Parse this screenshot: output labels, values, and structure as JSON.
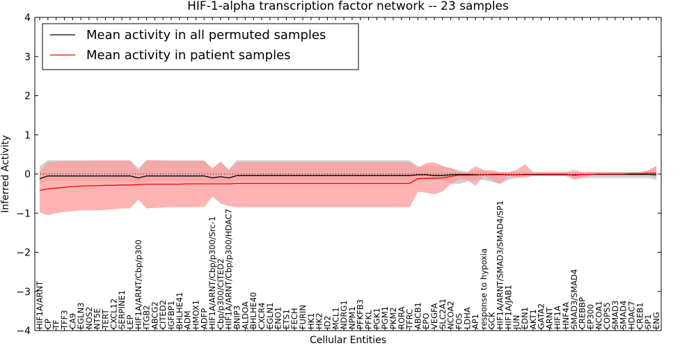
{
  "chart_data": {
    "type": "line",
    "title": "HIF-1-alpha transcription factor network -- 23 samples",
    "xlabel": "Cellular Entities",
    "ylabel": "Inferred Activity",
    "ylim": [
      -4,
      4
    ],
    "yticks": [
      "−4",
      "−3",
      "−2",
      "−1",
      "0",
      "1",
      "2",
      "3",
      "4"
    ],
    "legend_position": "top-left",
    "categories": [
      "HIF1A/ARNT",
      "CP",
      "TF",
      "TFF3",
      "CA9",
      "EGLN3",
      "NOS2",
      "NT5E",
      "TERT",
      "CXCL12",
      "SERPINE1",
      "LEP",
      "HIF1A/ARNT/Cbp/p300",
      "ITGB2",
      "ABCG2",
      "CITED2",
      "IGFBP1",
      "BHLHE41",
      "ADM",
      "HMOX1",
      "ADFP",
      "HIF1A/ARNT/Cbp/p300/Src-1",
      "Cbp/p300/CITED2",
      "HIF1A/ARNT/Cbp/p300/HDAC7",
      "BNIP3",
      "ALDOA",
      "BHLHE40",
      "CXCR4",
      "EGLN1",
      "ENO1",
      "ETS1",
      "FECH",
      "FURIN",
      "HK1",
      "HK2",
      "ID2",
      "MCL1",
      "NDRG1",
      "NPM1",
      "PFKFB3",
      "PFKL",
      "PGK1",
      "PGM1",
      "PKM2",
      "RORA",
      "TFRC",
      "ABCB1",
      "EPO",
      "VEGFA",
      "SLC2A1",
      "NCOA2",
      "FOS",
      "LDHA",
      "AP1",
      "response to hypoxia",
      "GCK",
      "HIF1A/ARNT/SMAD3/SMAD4/SP1",
      "HIF1A/JAB1",
      "JUN",
      "EDN1",
      "AKT1",
      "GATA2",
      "ARNT",
      "HIF1A",
      "HNF4A",
      "SMAD3/SMAD4",
      "CREBBP",
      "EP300",
      "NCOA1",
      "COPS5",
      "SMAD3",
      "SMAD4",
      "HDAC7",
      "CREB1",
      "SP1",
      "ENG"
    ],
    "series": [
      {
        "name": "Mean activity in all permuted samples",
        "color": "#000000",
        "band_color": "#bdbdbd",
        "values": [
          -0.12,
          -0.05,
          -0.05,
          -0.05,
          -0.05,
          -0.05,
          -0.05,
          -0.05,
          -0.05,
          -0.05,
          -0.05,
          -0.05,
          -0.1,
          -0.05,
          -0.05,
          -0.05,
          -0.05,
          -0.05,
          -0.05,
          -0.05,
          -0.05,
          -0.1,
          -0.07,
          -0.1,
          -0.04,
          -0.04,
          -0.04,
          -0.04,
          -0.04,
          -0.04,
          -0.04,
          -0.04,
          -0.04,
          -0.04,
          -0.04,
          -0.04,
          -0.04,
          -0.04,
          -0.04,
          -0.04,
          -0.04,
          -0.04,
          -0.04,
          -0.04,
          -0.04,
          -0.04,
          -0.02,
          -0.02,
          -0.04,
          -0.04,
          -0.02,
          -0.01,
          -0.01,
          -0.02,
          -0.02,
          -0.01,
          -0.01,
          -0.02,
          -0.02,
          -0.01,
          -0.01,
          -0.01,
          -0.01,
          -0.01,
          -0.01,
          -0.03,
          -0.01,
          -0.01,
          -0.01,
          -0.01,
          -0.01,
          -0.01,
          -0.01,
          -0.01,
          -0.01,
          -0.02
        ],
        "lower": [
          -0.25,
          -0.18,
          -0.18,
          -0.18,
          -0.18,
          -0.18,
          -0.18,
          -0.18,
          -0.18,
          -0.18,
          -0.18,
          -0.18,
          -0.23,
          -0.18,
          -0.18,
          -0.18,
          -0.18,
          -0.18,
          -0.18,
          -0.18,
          -0.18,
          -0.22,
          -0.2,
          -0.22,
          -0.17,
          -0.17,
          -0.17,
          -0.17,
          -0.17,
          -0.17,
          -0.17,
          -0.17,
          -0.17,
          -0.17,
          -0.17,
          -0.17,
          -0.17,
          -0.17,
          -0.17,
          -0.17,
          -0.17,
          -0.17,
          -0.17,
          -0.17,
          -0.17,
          -0.17,
          -0.15,
          -0.15,
          -0.15,
          -0.15,
          -0.25,
          -0.25,
          -0.2,
          -0.15,
          -0.15,
          -0.2,
          -0.25,
          -0.15,
          -0.1,
          -0.05,
          -0.05,
          -0.05,
          -0.05,
          -0.05,
          -0.05,
          -0.1,
          -0.1,
          -0.1,
          -0.1,
          -0.1,
          -0.1,
          -0.1,
          -0.1,
          -0.1,
          -0.1,
          -0.15
        ],
        "upper": [
          0.2,
          0.35,
          0.35,
          0.35,
          0.35,
          0.35,
          0.35,
          0.35,
          0.35,
          0.35,
          0.35,
          0.35,
          0.15,
          0.35,
          0.35,
          0.35,
          0.35,
          0.35,
          0.35,
          0.35,
          0.35,
          0.12,
          0.3,
          0.12,
          0.35,
          0.35,
          0.35,
          0.35,
          0.35,
          0.35,
          0.35,
          0.35,
          0.35,
          0.35,
          0.35,
          0.35,
          0.35,
          0.35,
          0.35,
          0.35,
          0.35,
          0.35,
          0.35,
          0.35,
          0.35,
          0.35,
          0.2,
          0.2,
          0.2,
          0.2,
          0.15,
          0.1,
          0.05,
          0.1,
          0.1,
          0.05,
          0.05,
          0.05,
          0.05,
          0.05,
          0.05,
          0.05,
          0.05,
          0.05,
          0.05,
          0.05,
          0.05,
          0.05,
          0.05,
          0.05,
          0.05,
          0.05,
          0.05,
          0.05,
          0.1,
          0.2
        ]
      },
      {
        "name": "Mean activity in patient samples",
        "color": "#ff0000",
        "band_color": "#ff9999",
        "values": [
          -0.42,
          -0.38,
          -0.36,
          -0.34,
          -0.32,
          -0.31,
          -0.3,
          -0.3,
          -0.29,
          -0.29,
          -0.28,
          -0.28,
          -0.27,
          -0.26,
          -0.26,
          -0.26,
          -0.26,
          -0.26,
          -0.25,
          -0.25,
          -0.25,
          -0.25,
          -0.25,
          -0.25,
          -0.24,
          -0.24,
          -0.24,
          -0.24,
          -0.24,
          -0.24,
          -0.24,
          -0.24,
          -0.24,
          -0.24,
          -0.24,
          -0.24,
          -0.24,
          -0.24,
          -0.24,
          -0.24,
          -0.24,
          -0.24,
          -0.24,
          -0.24,
          -0.24,
          -0.24,
          -0.12,
          -0.11,
          -0.11,
          -0.1,
          -0.06,
          -0.03,
          -0.03,
          -0.03,
          -0.02,
          -0.02,
          -0.02,
          -0.02,
          -0.02,
          -0.02,
          -0.02,
          -0.02,
          -0.02,
          -0.02,
          -0.02,
          -0.02,
          -0.01,
          -0.01,
          0.0,
          0.0,
          0.0,
          0.0,
          0.01,
          0.01,
          0.02,
          0.02
        ],
        "lower": [
          -0.98,
          -1.05,
          -1.0,
          -0.97,
          -0.95,
          -0.93,
          -0.93,
          -0.93,
          -0.92,
          -0.9,
          -0.88,
          -0.88,
          -0.65,
          -0.88,
          -0.87,
          -0.86,
          -0.85,
          -0.85,
          -0.85,
          -0.85,
          -0.84,
          -0.58,
          -0.75,
          -0.82,
          -0.85,
          -0.85,
          -0.85,
          -0.85,
          -0.85,
          -0.85,
          -0.85,
          -0.85,
          -0.85,
          -0.85,
          -0.85,
          -0.85,
          -0.85,
          -0.85,
          -0.85,
          -0.85,
          -0.85,
          -0.85,
          -0.85,
          -0.85,
          -0.85,
          -0.85,
          -0.45,
          -0.48,
          -0.52,
          -0.45,
          -0.25,
          -0.15,
          -0.15,
          -0.3,
          -0.05,
          -0.15,
          -0.25,
          -0.05,
          -0.1,
          -0.1,
          -0.05,
          -0.05,
          -0.05,
          -0.05,
          -0.05,
          -0.15,
          -0.1,
          -0.02,
          0.0,
          0.0,
          0.0,
          0.0,
          0.0,
          0.0,
          0.0,
          -0.1
        ],
        "upper": [
          0.05,
          0.3,
          0.32,
          0.32,
          0.33,
          0.33,
          0.33,
          0.34,
          0.34,
          0.34,
          0.34,
          0.34,
          0.08,
          0.35,
          0.35,
          0.34,
          0.33,
          0.33,
          0.33,
          0.33,
          0.33,
          0.15,
          0.32,
          0.1,
          0.3,
          0.3,
          0.3,
          0.3,
          0.3,
          0.3,
          0.3,
          0.3,
          0.3,
          0.3,
          0.3,
          0.3,
          0.3,
          0.3,
          0.3,
          0.3,
          0.3,
          0.3,
          0.3,
          0.3,
          0.3,
          0.3,
          0.15,
          0.28,
          0.3,
          0.2,
          0.15,
          0.05,
          0.05,
          0.2,
          0.1,
          0.1,
          0.05,
          0.05,
          0.1,
          0.25,
          0.05,
          0.05,
          0.05,
          0.05,
          0.05,
          0.1,
          0.05,
          0.05,
          0.05,
          0.05,
          0.05,
          0.05,
          0.05,
          0.05,
          0.08,
          0.2
        ]
      }
    ]
  }
}
